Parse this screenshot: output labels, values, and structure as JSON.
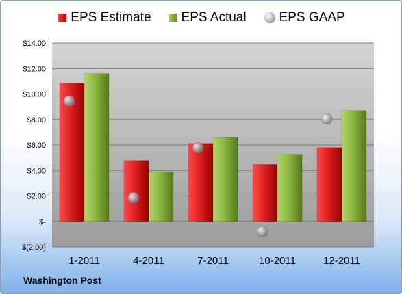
{
  "chart_data": {
    "type": "bar",
    "categories": [
      "1-2011",
      "4-2011",
      "7-2011",
      "10-2011",
      "12-2011"
    ],
    "series": [
      {
        "name": "EPS Estimate",
        "values": [
          10.85,
          4.78,
          6.12,
          4.47,
          5.8
        ],
        "color": "#d42020"
      },
      {
        "name": "EPS Actual",
        "values": [
          11.6,
          3.9,
          6.58,
          5.27,
          8.7
        ],
        "color": "#86b03c"
      }
    ],
    "gaap": {
      "name": "EPS GAAP",
      "values": [
        9.45,
        1.85,
        5.77,
        -0.8,
        8.05
      ],
      "color": "#9aa3ab"
    },
    "ylim": [
      -2,
      14
    ],
    "yticks": [
      -2,
      0,
      2,
      4,
      6,
      8,
      10,
      12,
      14
    ],
    "ytick_labels": [
      "$(2.00)",
      "$-",
      "$2.00",
      "$4.00",
      "$6.00",
      "$8.00",
      "$10.00",
      "$12.00",
      "$14.00"
    ],
    "grid": true,
    "legend_position": "top",
    "source_label": "Washington Post"
  }
}
